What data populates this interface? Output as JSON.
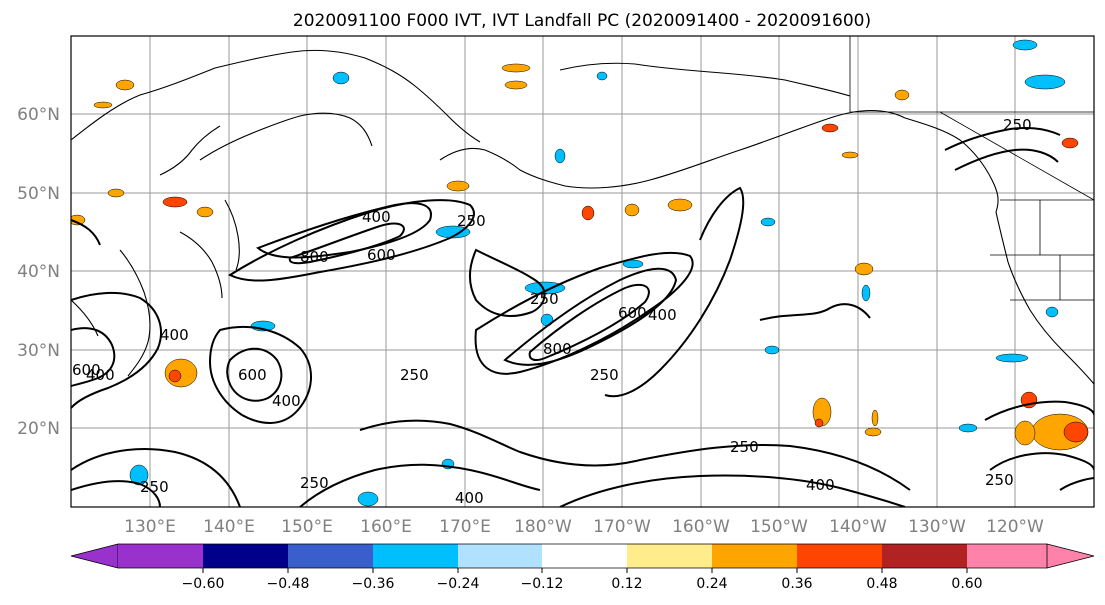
{
  "title": "2020091100 F000 IVT, IVT Landfall PC (2020091400 - 2020091600)",
  "map": {
    "lon_labels": [
      "130°E",
      "140°E",
      "150°E",
      "160°E",
      "170°E",
      "180°W",
      "170°W",
      "160°W",
      "150°W",
      "140°W",
      "130°W",
      "120°W"
    ],
    "lat_labels": [
      "60°N",
      "50°N",
      "40°N",
      "30°N",
      "20°N"
    ],
    "contour_labels": [
      "800",
      "600",
      "400",
      "250",
      "800",
      "600",
      "400",
      "250",
      "250",
      "600",
      "400",
      "250",
      "400",
      "250",
      "400",
      "250",
      "250",
      "400",
      "250",
      "250",
      "600",
      "400"
    ]
  },
  "colorbar": {
    "colors": [
      "#9932cc",
      "#00008b",
      "#3a5fcd",
      "#00bfff",
      "#b0e2ff",
      "#ffffff",
      "#ffec8b",
      "#ffa500",
      "#ff4500",
      "#b22222",
      "#ff82ab"
    ],
    "tick_labels": [
      "−0.60",
      "−0.48",
      "−0.36",
      "−0.24",
      "−0.12",
      "0.12",
      "0.24",
      "0.36",
      "0.48",
      "0.60"
    ]
  }
}
